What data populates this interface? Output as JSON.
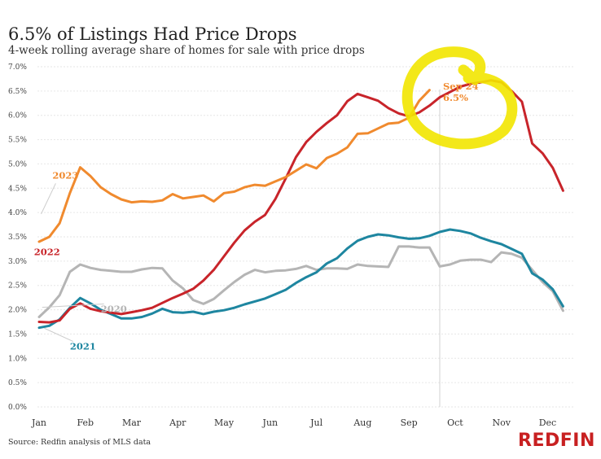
{
  "header": {
    "title": "6.5% of Listings Had Price Drops",
    "subtitle": "4-week rolling average share of homes for sale with price drops"
  },
  "footer": {
    "source": "Source: Redfin analysis of MLS data",
    "brand": "REDFIN"
  },
  "colors": {
    "2023": "#f08a2e",
    "2022": "#c8242a",
    "2021": "#1e86a0",
    "2020": "#b5b5b5",
    "highlight": "#f2e600",
    "brand": "#c82021"
  },
  "chart_data": {
    "type": "line",
    "title": "6.5% of Listings Had Price Drops",
    "subtitle": "4-week rolling average share of homes for sale with price drops",
    "xlabel": "",
    "ylabel": "",
    "xlim": [
      0,
      52
    ],
    "ylim": [
      0,
      7
    ],
    "x_unit": "week of year",
    "month_ticks": [
      {
        "label": "Jan",
        "week": 0
      },
      {
        "label": "Feb",
        "week": 4.5
      },
      {
        "label": "Mar",
        "week": 9
      },
      {
        "label": "Apr",
        "week": 13.5
      },
      {
        "label": "May",
        "week": 18
      },
      {
        "label": "Jun",
        "week": 22.5
      },
      {
        "label": "Jul",
        "week": 27
      },
      {
        "label": "Aug",
        "week": 31.5
      },
      {
        "label": "Sep",
        "week": 36
      },
      {
        "label": "Oct",
        "week": 40.5
      },
      {
        "label": "Nov",
        "week": 45
      },
      {
        "label": "Dec",
        "week": 49.5
      }
    ],
    "y_ticks": [
      "7.0%",
      "6.5%",
      "6.0%",
      "5.5%",
      "5.0%",
      "4.5%",
      "4.0%",
      "3.5%",
      "3.0%",
      "2.5%",
      "2.0%",
      "1.5%",
      "1.0%",
      "0.5%",
      "0.0%"
    ],
    "grid": "horizontal",
    "reference_line_week": 39,
    "annotation": {
      "line1": "Sep 24",
      "line2": "6.5%",
      "week": 39,
      "value": 6.5
    },
    "series": [
      {
        "name": "2023",
        "x": [
          0,
          1,
          2,
          3,
          4,
          5,
          6,
          7,
          8,
          9,
          10,
          11,
          12,
          13,
          14,
          15,
          16,
          17,
          18,
          19,
          20,
          21,
          22,
          23,
          24,
          25,
          26,
          27,
          28,
          29,
          30,
          31,
          32,
          33,
          34,
          35,
          36,
          37,
          38
        ],
        "values": [
          3.4,
          3.5,
          3.78,
          4.4,
          4.93,
          4.75,
          4.52,
          4.38,
          4.27,
          4.21,
          4.23,
          4.22,
          4.25,
          4.38,
          4.29,
          4.32,
          4.35,
          4.23,
          4.4,
          4.43,
          4.52,
          4.57,
          4.55,
          4.64,
          4.73,
          4.86,
          4.99,
          4.91,
          5.12,
          5.21,
          5.34,
          5.62,
          5.63,
          5.73,
          5.83,
          5.85,
          5.95,
          6.3,
          6.52
        ]
      },
      {
        "name": "2022",
        "x": [
          0,
          1,
          2,
          3,
          4,
          5,
          6,
          7,
          8,
          9,
          10,
          11,
          12,
          13,
          14,
          15,
          16,
          17,
          18,
          19,
          20,
          21,
          22,
          23,
          24,
          25,
          26,
          27,
          28,
          29,
          30,
          31,
          32,
          33,
          34,
          35,
          36,
          37,
          38,
          39,
          40,
          41,
          42,
          43,
          44,
          45,
          46,
          47,
          48,
          49,
          50,
          51
        ],
        "values": [
          1.75,
          1.74,
          1.78,
          2.02,
          2.13,
          2.02,
          1.97,
          1.94,
          1.91,
          1.95,
          1.99,
          2.04,
          2.14,
          2.24,
          2.33,
          2.43,
          2.6,
          2.82,
          3.1,
          3.38,
          3.63,
          3.81,
          3.95,
          4.28,
          4.7,
          5.14,
          5.45,
          5.66,
          5.84,
          6.0,
          6.29,
          6.44,
          6.37,
          6.3,
          6.15,
          6.04,
          5.98,
          6.06,
          6.2,
          6.37,
          6.48,
          6.59,
          6.65,
          6.68,
          6.72,
          6.68,
          6.5,
          6.28,
          5.42,
          5.22,
          4.92,
          4.45
        ]
      },
      {
        "name": "2021",
        "x": [
          0,
          1,
          2,
          3,
          4,
          5,
          6,
          7,
          8,
          9,
          10,
          11,
          12,
          13,
          14,
          15,
          16,
          17,
          18,
          19,
          20,
          21,
          22,
          23,
          24,
          25,
          26,
          27,
          28,
          29,
          30,
          31,
          32,
          33,
          34,
          35,
          36,
          37,
          38,
          39,
          40,
          41,
          42,
          43,
          44,
          45,
          46,
          47,
          48,
          49,
          50,
          51
        ],
        "values": [
          1.63,
          1.67,
          1.8,
          2.04,
          2.24,
          2.13,
          2.0,
          1.91,
          1.82,
          1.82,
          1.85,
          1.92,
          2.02,
          1.95,
          1.94,
          1.96,
          1.91,
          1.96,
          1.99,
          2.04,
          2.11,
          2.17,
          2.23,
          2.32,
          2.41,
          2.55,
          2.67,
          2.77,
          2.95,
          3.06,
          3.26,
          3.42,
          3.5,
          3.55,
          3.53,
          3.49,
          3.46,
          3.47,
          3.52,
          3.6,
          3.65,
          3.62,
          3.57,
          3.48,
          3.41,
          3.35,
          3.25,
          3.15,
          2.75,
          2.62,
          2.42,
          2.07
        ]
      },
      {
        "name": "2020",
        "x": [
          0,
          1,
          2,
          3,
          4,
          5,
          6,
          7,
          8,
          9,
          10,
          11,
          12,
          13,
          14,
          15,
          16,
          17,
          18,
          19,
          20,
          21,
          22,
          23,
          24,
          25,
          26,
          27,
          28,
          29,
          30,
          31,
          32,
          33,
          34,
          35,
          36,
          37,
          38,
          39,
          40,
          41,
          42,
          43,
          44,
          45,
          46,
          47,
          48,
          49,
          50,
          51
        ],
        "values": [
          1.85,
          2.05,
          2.3,
          2.78,
          2.93,
          2.86,
          2.82,
          2.8,
          2.78,
          2.78,
          2.83,
          2.86,
          2.85,
          2.6,
          2.44,
          2.2,
          2.12,
          2.22,
          2.4,
          2.57,
          2.72,
          2.82,
          2.77,
          2.8,
          2.81,
          2.84,
          2.9,
          2.82,
          2.85,
          2.85,
          2.84,
          2.93,
          2.9,
          2.89,
          2.88,
          3.3,
          3.3,
          3.28,
          3.28,
          2.89,
          2.93,
          3.01,
          3.03,
          3.03,
          2.98,
          3.18,
          3.15,
          3.07,
          2.82,
          2.57,
          2.38,
          1.98
        ]
      }
    ],
    "series_labels": [
      {
        "name": "2023",
        "week": 1.3,
        "value": 4.7,
        "leader_to": {
          "week": 0.2,
          "value": 3.97
        }
      },
      {
        "name": "2022",
        "week": -0.5,
        "value": 3.12
      },
      {
        "name": "2020",
        "week": 6.0,
        "value": 1.95,
        "leader_to": {
          "week": 0.3,
          "value": 2.05
        }
      },
      {
        "name": "2021",
        "week": 3.0,
        "value": 1.18,
        "leader_to": {
          "week": 0.5,
          "value": 1.62
        }
      }
    ]
  }
}
